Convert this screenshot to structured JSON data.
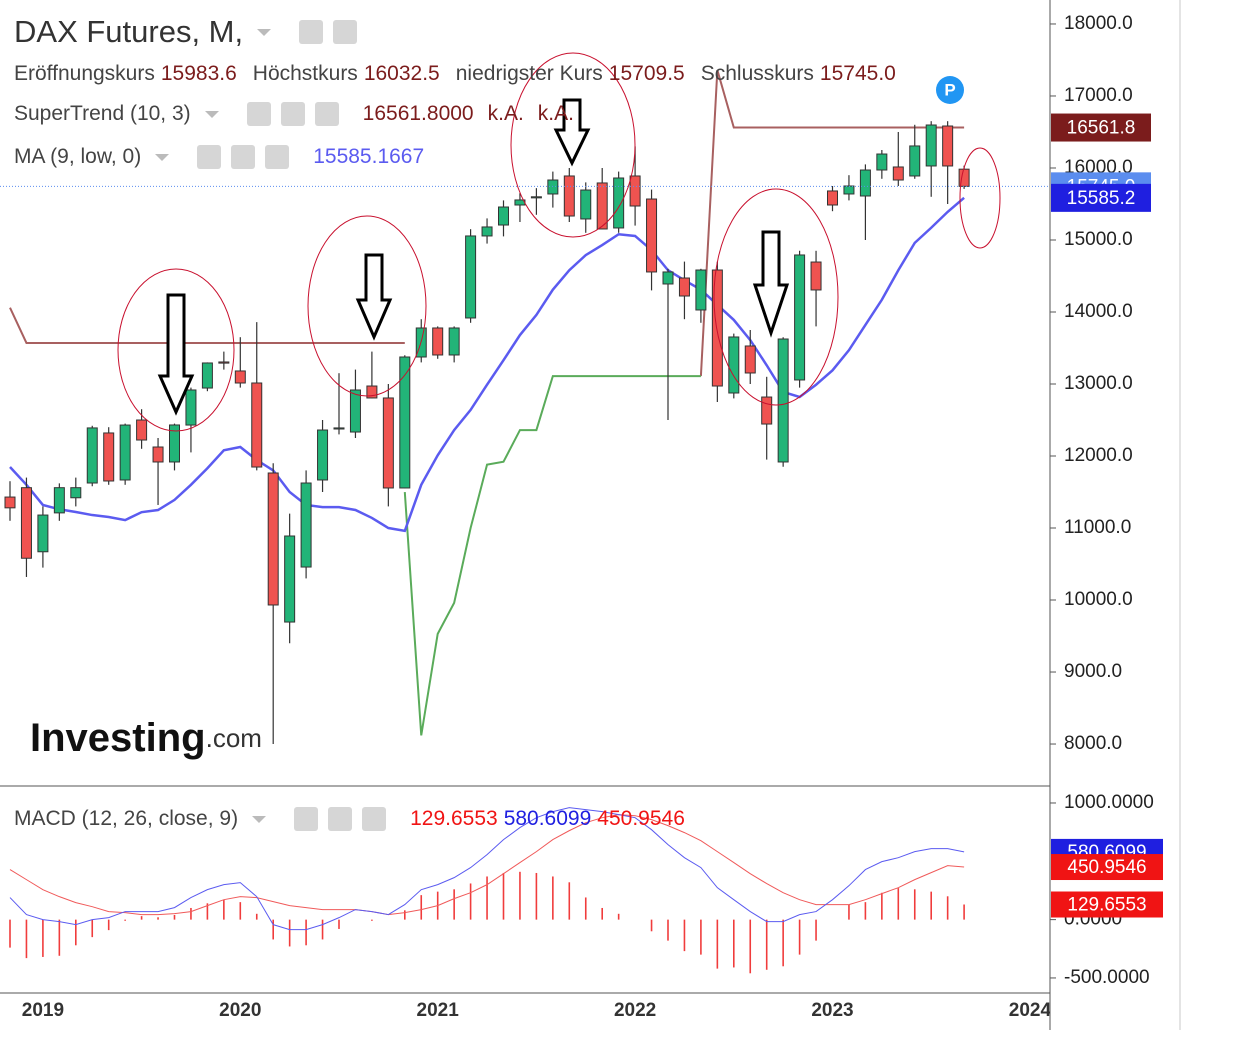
{
  "chart_data": [
    {
      "type": "candlestick",
      "title": "DAX Futures, M,",
      "legend_ohlc": [
        {
          "label": "Eröffnungskurs",
          "value": "15983.6"
        },
        {
          "label": "Höchstkurs",
          "value": "16032.5"
        },
        {
          "label": "niedrigster Kurs",
          "value": "15709.5"
        },
        {
          "label": "Schlusskurs",
          "value": "15745.0"
        }
      ],
      "categories": [
        null,
        null,
        "2019",
        null,
        null,
        null,
        null,
        null,
        null,
        null,
        null,
        null,
        null,
        null,
        "2020",
        null,
        null,
        null,
        null,
        null,
        null,
        null,
        null,
        null,
        null,
        null,
        "2021",
        null,
        null,
        null,
        null,
        null,
        null,
        null,
        null,
        null,
        null,
        null,
        "2022",
        null,
        null,
        null,
        null,
        null,
        null,
        null,
        null,
        null,
        null,
        null,
        "2023",
        null,
        null,
        null,
        null,
        null,
        null,
        null,
        null,
        null,
        null,
        null,
        "2024"
      ],
      "open": [
        11430,
        11560,
        10670,
        11210,
        11420,
        11625,
        12320,
        11667,
        12500,
        12125,
        11917,
        12430,
        12944,
        13306,
        13181,
        13014,
        11764,
        9694,
        10458,
        11667,
        12375,
        12333,
        12972,
        12806,
        11556,
        13375,
        13778,
        13403,
        13917,
        15056,
        15208,
        15486,
        15585,
        15639,
        15889,
        15292,
        15792,
        15167,
        15889,
        15569,
        14389,
        14472,
        14028,
        14583,
        12875,
        13528,
        12819,
        11917,
        13056,
        14694,
        15681,
        15639,
        15611,
        15972,
        16014,
        15889,
        16028,
        16583,
        15983.6,
        null,
        null,
        null,
        null
      ],
      "high": [
        11650,
        11700,
        11300,
        11620,
        11700,
        12420,
        12400,
        12450,
        12650,
        12250,
        12450,
        12950,
        13300,
        13450,
        13650,
        13860,
        11900,
        11200,
        11800,
        12500,
        13150,
        13200,
        13450,
        13000,
        13400,
        13900,
        13800,
        13800,
        15150,
        15300,
        15550,
        15650,
        15720,
        15950,
        16000,
        15800,
        16000,
        15950,
        16300,
        15700,
        14600,
        14700,
        14600,
        14700,
        13700,
        13750,
        13100,
        13650,
        14850,
        14850,
        15750,
        15900,
        16050,
        16250,
        16500,
        16600,
        16650,
        16650,
        16032.5,
        null,
        null,
        null,
        null
      ],
      "low": [
        11100,
        10320,
        10450,
        11100,
        11300,
        11580,
        11600,
        11600,
        12100,
        11320,
        11800,
        12050,
        12900,
        13200,
        12950,
        11800,
        8000,
        9400,
        10300,
        11500,
        12300,
        12250,
        12800,
        11300,
        11550,
        13300,
        13350,
        13300,
        13850,
        14950,
        15050,
        15250,
        15350,
        15450,
        15250,
        15100,
        15150,
        15100,
        15200,
        14300,
        12500,
        13900,
        13850,
        12750,
        12800,
        13000,
        11950,
        11850,
        12950,
        13800,
        15400,
        15550,
        15000,
        15850,
        15750,
        15850,
        15600,
        15500,
        15709.5,
        null,
        null,
        null,
        null
      ],
      "close": [
        11280,
        10580,
        11180,
        11560,
        11560,
        12390,
        11653,
        12430,
        12222,
        11917,
        12431,
        12917,
        13292,
        13290,
        13014,
        11847,
        9931,
        10889,
        11625,
        12361,
        12390,
        12917,
        12806,
        11556,
        13375,
        13778,
        13403,
        13778,
        15056,
        15181,
        15458,
        15556,
        15600,
        15833,
        15333,
        15694,
        15153,
        15861,
        15472,
        14556,
        14556,
        14222,
        14583,
        12972,
        13653,
        13153,
        12444,
        13625,
        14792,
        14306,
        15486,
        15750,
        15972,
        16194,
        15833,
        16306,
        16597,
        16028,
        15745.0,
        null,
        null,
        null,
        null
      ],
      "up_color": "#22b478",
      "down_color": "#ef5350",
      "ylim": [
        7417,
        18333
      ],
      "yticks": [
        {
          "value": 8000,
          "label": "8000.0"
        },
        {
          "value": 9000,
          "label": "9000.0"
        },
        {
          "value": 10000,
          "label": "10000.0"
        },
        {
          "value": 11000,
          "label": "11000.0"
        },
        {
          "value": 12000,
          "label": "12000.0"
        },
        {
          "value": 13000,
          "label": "13000.0"
        },
        {
          "value": 14000,
          "label": "14000.0"
        },
        {
          "value": 15000,
          "label": "15000.0"
        },
        {
          "value": 16000,
          "label": "16000.0"
        },
        {
          "value": 17000,
          "label": "17000.0"
        },
        {
          "value": 18000,
          "label": "18000.0"
        }
      ],
      "last_price_label": "15745.0",
      "last_price_color": "#5b8def",
      "supertrend": {
        "name": "SuperTrend (10, 3)",
        "status": [
          "16561.8000",
          "k.A.",
          "k.A."
        ],
        "status_color": "#7b1c1c",
        "down_color": "#a86060",
        "up_color": "#5aab5a",
        "badge_color": "#7b1c1c",
        "last_label": "16561.8",
        "down_values": [
          14060,
          13570,
          13570,
          13570,
          13570,
          13570,
          13570,
          13570,
          13570,
          13570,
          13570,
          13570,
          13570,
          13570,
          13570,
          13570,
          13570,
          13570,
          13570,
          13570,
          13570,
          13570,
          13570,
          13570,
          13570,
          null,
          null,
          null,
          null,
          null,
          null,
          null,
          null,
          null,
          null,
          null,
          null,
          null,
          null,
          null,
          null,
          null,
          13110,
          17360,
          16561.8,
          16561.8,
          16561.8,
          16561.8,
          16561.8,
          16561.8,
          16561.8,
          16561.8,
          16561.8,
          16561.8,
          16561.8,
          16561.8,
          16561.8,
          16561.8,
          16561.8,
          null,
          null,
          null,
          null
        ],
        "up_values": [
          null,
          null,
          null,
          null,
          null,
          null,
          null,
          null,
          null,
          null,
          null,
          null,
          null,
          null,
          null,
          null,
          null,
          null,
          null,
          null,
          null,
          null,
          null,
          null,
          11500,
          8120,
          9530,
          9960,
          11000,
          11880,
          11920,
          12360,
          12360,
          13110,
          13110,
          13110,
          13110,
          13110,
          13110,
          13110,
          13110,
          13110,
          13110,
          null,
          null,
          null,
          null,
          null,
          null,
          null,
          null,
          null,
          null,
          null,
          null,
          null,
          null,
          null,
          null,
          null,
          null,
          null,
          null
        ]
      },
      "ma": {
        "name": "MA (9, low, 0)",
        "status": "15585.1667",
        "color": "#5b5bf0",
        "badge_color": "#1f1fe0",
        "last_label": "15585.2",
        "values": [
          11847,
          11600,
          11320,
          11260,
          11222,
          11180,
          11153,
          11110,
          11220,
          11250,
          11390,
          11600,
          11830,
          12080,
          12125,
          11944,
          11800,
          11500,
          11320,
          11290,
          11290,
          11250,
          11140,
          11000,
          10960,
          11600,
          12010,
          12360,
          12640,
          12990,
          13330,
          13680,
          13960,
          14310,
          14580,
          14790,
          14930,
          15080,
          15056,
          14860,
          14580,
          14440,
          14310,
          14100,
          13890,
          13610,
          13260,
          12890,
          12820,
          12990,
          13190,
          13470,
          13820,
          14170,
          14580,
          14960,
          15170,
          15390,
          15585.1667,
          null,
          null,
          null,
          null
        ]
      },
      "watermark": {
        "brand": "Investing",
        "suffix": ".com"
      },
      "marker": "P"
    },
    {
      "type": "macd",
      "name": "MACD (12, 26, close, 9)",
      "status": [
        "129.6553",
        "580.6099",
        "450.9546"
      ],
      "ylim": [
        -629,
        1137
      ],
      "yticks": [
        {
          "value": 1000,
          "label": "1000.0000"
        },
        {
          "value": 0,
          "label": "0.0000"
        },
        {
          "value": -500,
          "label": "-500.0000"
        }
      ],
      "macd": {
        "color": "#5b5bf0",
        "badge_color": "#1f1fe0",
        "last_label": "580.6099",
        "values": [
          189,
          43,
          0,
          -17,
          -43,
          0,
          17,
          69,
          69,
          69,
          103,
          189,
          257,
          300,
          317,
          197,
          -43,
          -86,
          -86,
          -43,
          17,
          86,
          69,
          43,
          129,
          257,
          300,
          360,
          446,
          557,
          686,
          789,
          874,
          926,
          960,
          943,
          926,
          900,
          874,
          771,
          643,
          531,
          446,
          274,
          171,
          69,
          -17,
          -17,
          43,
          69,
          171,
          291,
          429,
          497,
          531,
          583,
          609,
          609,
          580.6099,
          null,
          null,
          null,
          null
        ]
      },
      "signal": {
        "color": "#f05a5a",
        "badge_color": "#f01414",
        "last_label": "450.9546",
        "values": [
          429,
          343,
          257,
          197,
          146,
          111,
          69,
          60,
          43,
          43,
          51,
          69,
          120,
          171,
          197,
          189,
          154,
          120,
          103,
          86,
          86,
          86,
          69,
          43,
          60,
          86,
          120,
          180,
          231,
          300,
          394,
          489,
          583,
          686,
          763,
          831,
          874,
          900,
          891,
          857,
          806,
          746,
          677,
          583,
          489,
          394,
          309,
          231,
          171,
          129,
          129,
          129,
          171,
          223,
          274,
          343,
          403,
          463,
          450.9546,
          null,
          null,
          null,
          null
        ]
      },
      "histogram": {
        "color": "#f03c3c",
        "badge_color": "#f01414",
        "last_label": "129.6553",
        "values": [
          -240,
          -330,
          -320,
          -310,
          -220,
          -150,
          -90,
          -10,
          30,
          20,
          40,
          100,
          140,
          170,
          150,
          50,
          -170,
          -230,
          -220,
          -170,
          -80,
          0,
          -10,
          0,
          80,
          210,
          240,
          260,
          310,
          370,
          400,
          410,
          400,
          370,
          320,
          190,
          100,
          50,
          0,
          -100,
          -180,
          -270,
          -300,
          -420,
          -410,
          -460,
          -430,
          -400,
          -300,
          -180,
          0,
          130,
          150,
          230,
          270,
          260,
          240,
          200,
          129.6553,
          null,
          null,
          null,
          null
        ]
      }
    }
  ]
}
